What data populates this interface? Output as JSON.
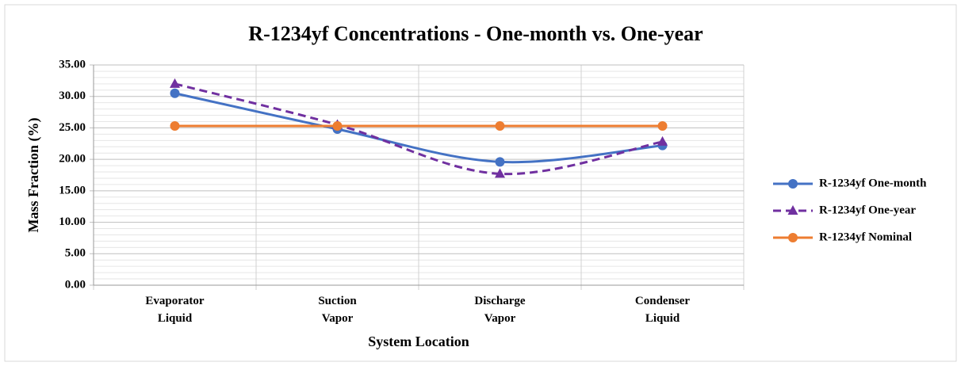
{
  "chart_data": {
    "type": "line",
    "title": "R-1234yf Concentrations - One-month vs. One-year",
    "x_label": "System Location",
    "y_label": "Mass Fraction (%)",
    "categories": [
      "Evaporator\nLiquid",
      "Suction\nVapor",
      "Discharge\nVapor",
      "Condenser\nLiquid"
    ],
    "series": [
      {
        "name": "R-1234yf One-month",
        "color": "#4472c4",
        "marker": "circle",
        "dash": false,
        "smooth": true,
        "values": [
          30.5,
          24.8,
          19.6,
          22.2
        ]
      },
      {
        "name": "R-1234yf One-year",
        "color": "#7030a0",
        "marker": "triangle",
        "dash": true,
        "smooth": true,
        "values": [
          32.0,
          25.5,
          17.7,
          22.8
        ]
      },
      {
        "name": "R-1234yf Nominal",
        "color": "#ed7d31",
        "marker": "circle",
        "dash": false,
        "smooth": false,
        "values": [
          25.3,
          25.3,
          25.3,
          25.3
        ]
      }
    ],
    "ylim": [
      0,
      35
    ],
    "yticks": [
      {
        "value": 0,
        "label": "0.00"
      },
      {
        "value": 5,
        "label": "5.00"
      },
      {
        "value": 10,
        "label": "10.00"
      },
      {
        "value": 15,
        "label": "15.00"
      },
      {
        "value": 20,
        "label": "20.00"
      },
      {
        "value": 25,
        "label": "25.00"
      },
      {
        "value": 30,
        "label": "30.00"
      },
      {
        "value": 35,
        "label": "35.00"
      }
    ],
    "grid": true,
    "minor_grid": true,
    "legend": "right"
  }
}
